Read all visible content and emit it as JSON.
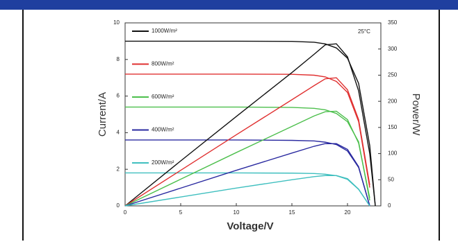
{
  "chart_data": {
    "type": "line",
    "annotation": "25°C",
    "x_label": "Voltage/V",
    "y_label": "Current/A",
    "y2_label": "Power/W",
    "x": [
      0,
      5,
      10,
      15,
      17,
      18,
      19,
      20,
      21,
      22,
      22.5
    ],
    "series": [
      {
        "name": "1000W/m²",
        "color": "#111111",
        "values": [
          9,
          9,
          9,
          8.99,
          8.94,
          8.85,
          8.63,
          8.07,
          6.69,
          3.3,
          0
        ]
      },
      {
        "name": "800W/m²",
        "color": "#e03030",
        "values": [
          7.2,
          7.2,
          7.2,
          7.19,
          7.14,
          7.05,
          6.8,
          6.2,
          4.6,
          1.0,
          null
        ]
      },
      {
        "name": "600W/m²",
        "color": "#4cbf4c",
        "values": [
          5.4,
          5.4,
          5.4,
          5.38,
          5.33,
          5.25,
          5.05,
          4.6,
          3.5,
          0.3,
          null
        ]
      },
      {
        "name": "400W/m²",
        "color": "#2a2aa0",
        "values": [
          3.6,
          3.6,
          3.6,
          3.58,
          3.55,
          3.48,
          3.35,
          3.0,
          2.1,
          0,
          null
        ]
      },
      {
        "name": "200W/m²",
        "color": "#3fbfbf",
        "values": [
          1.8,
          1.8,
          1.8,
          1.79,
          1.77,
          1.73,
          1.65,
          1.45,
          0.9,
          0,
          null
        ]
      },
      {
        "color": "#111111",
        "axis": "y2",
        "values": [
          0,
          86,
          171,
          255,
          290,
          308,
          310,
          285,
          220,
          100,
          0
        ]
      },
      {
        "color": "#e03030",
        "axis": "y2",
        "values": [
          0,
          68,
          136,
          203,
          230,
          243,
          245,
          222,
          165,
          40,
          null
        ]
      },
      {
        "color": "#4cbf4c",
        "axis": "y2",
        "values": [
          0,
          51,
          102,
          152,
          172,
          180,
          181,
          165,
          120,
          15,
          null
        ]
      },
      {
        "color": "#2a2aa0",
        "axis": "y2",
        "values": [
          0,
          34,
          68,
          101,
          114,
          119,
          119,
          108,
          75,
          0,
          null
        ]
      },
      {
        "color": "#3fbfbf",
        "axis": "y2",
        "values": [
          0,
          17,
          34,
          50,
          56,
          58,
          58,
          52,
          32,
          0,
          null
        ]
      }
    ],
    "xlim": [
      0,
      23
    ],
    "xticks": [
      0,
      5,
      10,
      15,
      20
    ],
    "ylim": [
      0,
      10
    ],
    "yticks": [
      0,
      2,
      4,
      6,
      8,
      10
    ],
    "y2lim": [
      0,
      350
    ],
    "y2ticks": [
      0,
      50,
      100,
      150,
      200,
      250,
      300,
      350
    ]
  }
}
